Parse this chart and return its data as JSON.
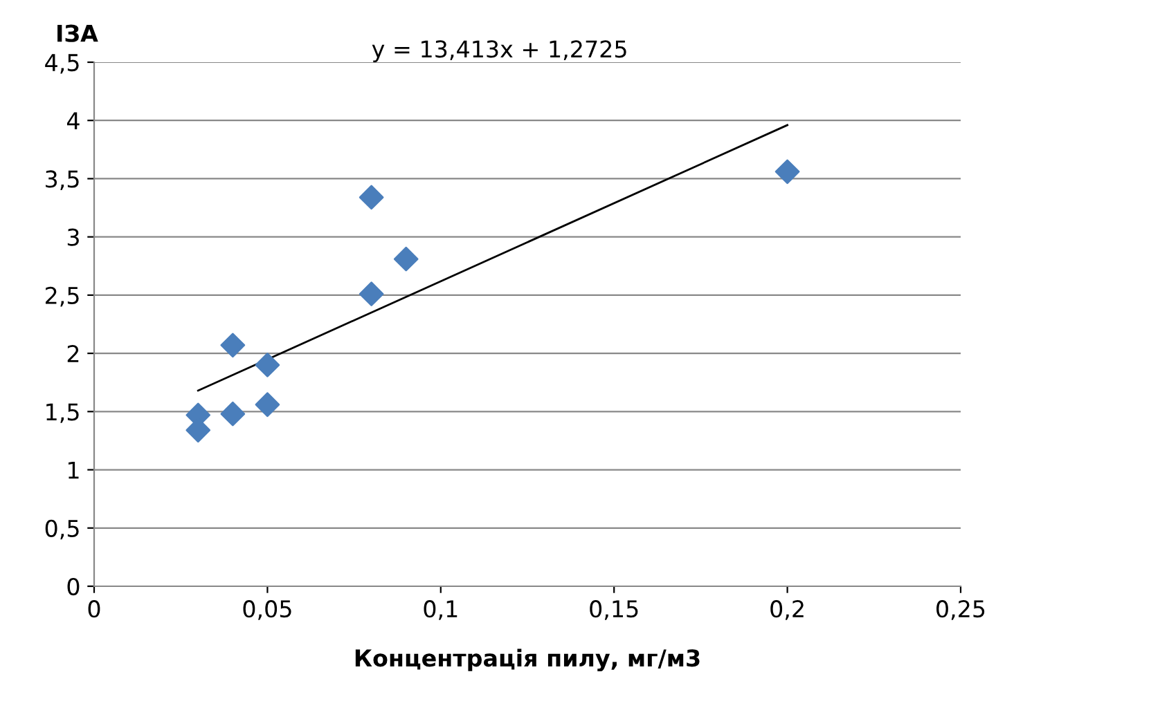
{
  "chart_data": {
    "type": "scatter",
    "ylabel": "IЗА",
    "xlabel": "Концентрація пилу, мг/м3",
    "annotations": [
      "y = 13,413x + 1,2725"
    ],
    "x": [
      0.03,
      0.03,
      0.04,
      0.04,
      0.05,
      0.05,
      0.08,
      0.08,
      0.09,
      0.2
    ],
    "series": [
      {
        "color": "#4a7ebb",
        "marker": "diamond",
        "values": [
          1.47,
          1.34,
          2.07,
          1.48,
          1.9,
          1.56,
          3.34,
          2.51,
          2.81,
          3.56
        ]
      },
      {
        "type": "line",
        "color": "#000000",
        "marker": "none",
        "x": [
          0.03,
          0.2
        ],
        "values": [
          1.68,
          3.96
        ]
      }
    ],
    "xlim": [
      0,
      0.25
    ],
    "xticks": [
      {
        "value": 0,
        "label": "0"
      },
      {
        "value": 0.05,
        "label": "0,05"
      },
      {
        "value": 0.1,
        "label": "0,1"
      },
      {
        "value": 0.15,
        "label": "0,15"
      },
      {
        "value": 0.2,
        "label": "0,2"
      },
      {
        "value": 0.25,
        "label": "0,25"
      }
    ],
    "ylim": [
      0,
      4.5
    ],
    "yticks": [
      0,
      {
        "value": 0.5,
        "label": "0,5"
      },
      1,
      {
        "value": 1.5,
        "label": "1,5"
      },
      2,
      {
        "value": 2.5,
        "label": "2,5"
      },
      3,
      {
        "value": 3.5,
        "label": "3,5"
      },
      4,
      {
        "value": 4.5,
        "label": "4,5"
      }
    ],
    "grid": "y",
    "legend": false
  }
}
